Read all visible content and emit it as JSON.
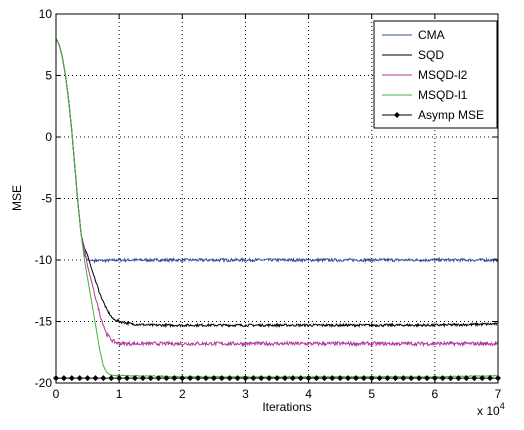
{
  "chart_data": {
    "type": "line",
    "title": "",
    "xlabel": "Iterations",
    "ylabel": "MSE",
    "x_multiplier_label": "x 10",
    "x_multiplier_exponent": "4",
    "xlim": [
      0,
      7
    ],
    "ylim": [
      -20,
      10
    ],
    "x_ticks": [
      0,
      1,
      2,
      3,
      4,
      5,
      6,
      7
    ],
    "x_tick_labels": [
      "0",
      "1",
      "2",
      "3",
      "4",
      "5",
      "6",
      "7"
    ],
    "y_ticks": [
      10,
      5,
      0,
      -5,
      -10,
      -15,
      -20
    ],
    "y_tick_labels": [
      "10",
      "5",
      "0",
      "-5",
      "-10",
      "-15",
      "-20"
    ],
    "grid": true,
    "legend_position": "top-right",
    "series": [
      {
        "name": "CMA",
        "color": "#3a4f9c",
        "noise": 0.12,
        "x": [
          0,
          0.05,
          0.1,
          0.15,
          0.2,
          0.25,
          0.3,
          0.35,
          0.4,
          0.45,
          0.5,
          0.6,
          0.8,
          1.0,
          2.0,
          4.0,
          6.0,
          7.0
        ],
        "y": [
          8.0,
          7.5,
          6.5,
          5.0,
          3.0,
          0.5,
          -2.5,
          -5.5,
          -8.0,
          -9.6,
          -10.0,
          -10.05,
          -10.05,
          -10.0,
          -10.0,
          -10.0,
          -10.0,
          -10.0
        ]
      },
      {
        "name": "SQD",
        "color": "#000000",
        "noise": 0.1,
        "x": [
          0,
          0.05,
          0.1,
          0.15,
          0.2,
          0.25,
          0.3,
          0.35,
          0.4,
          0.45,
          0.5,
          0.55,
          0.6,
          0.7,
          0.8,
          0.9,
          1.0,
          1.2,
          1.5,
          2.0,
          4.0,
          6.0,
          7.0
        ],
        "y": [
          8.0,
          7.5,
          6.5,
          5.0,
          3.0,
          0.5,
          -2.5,
          -5.5,
          -8.0,
          -9.0,
          -9.6,
          -10.5,
          -11.3,
          -12.8,
          -14.0,
          -14.8,
          -15.0,
          -15.2,
          -15.3,
          -15.3,
          -15.3,
          -15.3,
          -15.2
        ]
      },
      {
        "name": "MSQD-l2",
        "color": "#b0379a",
        "noise": 0.15,
        "x": [
          0,
          0.05,
          0.1,
          0.15,
          0.2,
          0.25,
          0.3,
          0.35,
          0.4,
          0.45,
          0.5,
          0.6,
          0.7,
          0.8,
          0.9,
          1.0,
          1.2,
          1.5,
          2.0,
          4.0,
          6.0,
          7.0
        ],
        "y": [
          8.0,
          7.5,
          6.5,
          5.0,
          3.0,
          0.5,
          -2.5,
          -5.5,
          -8.0,
          -9.0,
          -10.5,
          -12.5,
          -14.5,
          -16.0,
          -16.6,
          -16.8,
          -16.8,
          -16.8,
          -16.8,
          -16.8,
          -16.8,
          -16.8
        ]
      },
      {
        "name": "MSQD-l1",
        "color": "#3fb43a",
        "noise": 0.04,
        "x": [
          0,
          0.05,
          0.1,
          0.15,
          0.2,
          0.25,
          0.3,
          0.35,
          0.4,
          0.45,
          0.5,
          0.55,
          0.6,
          0.65,
          0.7,
          0.75,
          0.8,
          0.85,
          0.9,
          1.0,
          1.2,
          2.0,
          4.0,
          6.0,
          7.0
        ],
        "y": [
          8.0,
          7.5,
          6.5,
          5.0,
          3.0,
          0.5,
          -2.5,
          -5.5,
          -8.0,
          -10.0,
          -11.5,
          -13.0,
          -14.5,
          -16.0,
          -17.5,
          -18.6,
          -19.1,
          -19.3,
          -19.4,
          -19.4,
          -19.4,
          -19.5,
          -19.5,
          -19.5,
          -19.4
        ]
      },
      {
        "name": "Asymp MSE",
        "color": "#000000",
        "marker": "diamond",
        "x": [
          0,
          7
        ],
        "y": [
          -19.6,
          -19.6
        ]
      }
    ]
  }
}
